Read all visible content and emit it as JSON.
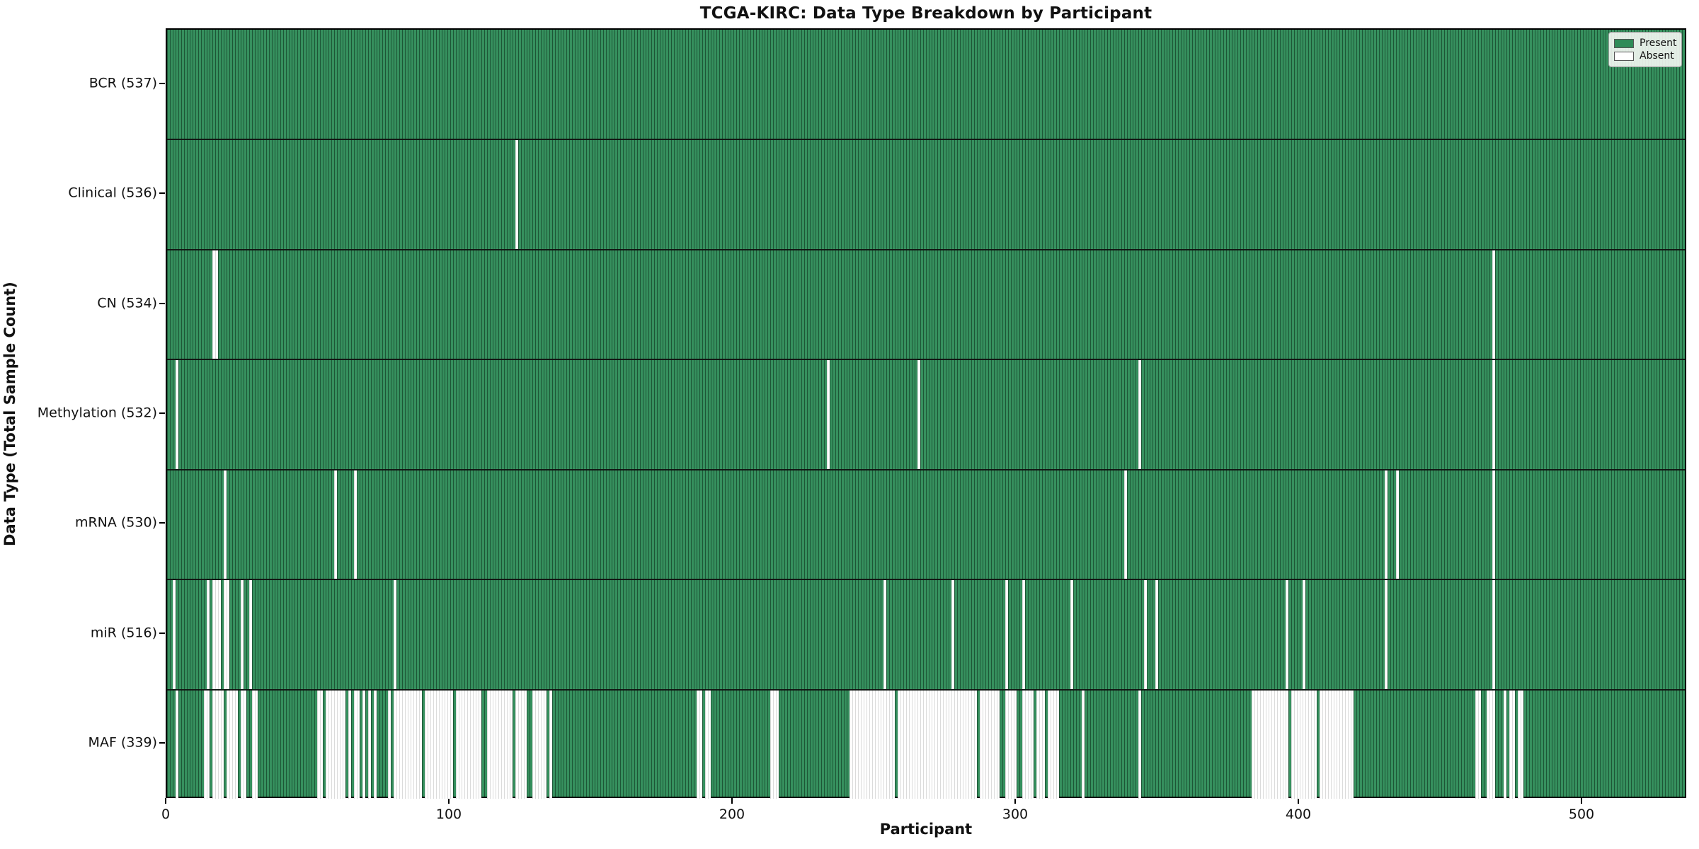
{
  "title": "TCGA-KIRC: Data Type Breakdown by Participant",
  "x_axis": {
    "label": "Participant",
    "ticks": [
      0,
      100,
      200,
      300,
      400,
      500
    ]
  },
  "y_axis": {
    "label": "Data Type (Total Sample Count)"
  },
  "legend": {
    "present_label": "Present",
    "absent_label": "Absent"
  },
  "colors": {
    "present": "#2e8b57",
    "present_edge": "#1e5c39",
    "absent": "#ffffff",
    "absent_edge": "#d9d9d9",
    "row_divider": "#141414",
    "plot_border": "#000000"
  },
  "chart_data": {
    "type": "heatmap",
    "title": "TCGA-KIRC: Data Type Breakdown by Participant",
    "xlabel": "Participant",
    "ylabel": "Data Type (Total Sample Count)",
    "legend_position": "upper right",
    "x_ticks": [
      0,
      100,
      200,
      300,
      400,
      500
    ],
    "n_participants": 537,
    "cell_states": {
      "present": "green",
      "absent": "white"
    },
    "rows": [
      {
        "data_type": "BCR",
        "label": "BCR (537)",
        "present_count": 537,
        "absent_participant_ranges": []
      },
      {
        "data_type": "Clinical",
        "label": "Clinical (536)",
        "present_count": 536,
        "absent_participant_ranges": [
          [
            123,
            123
          ]
        ]
      },
      {
        "data_type": "CN",
        "label": "CN (534)",
        "present_count": 534,
        "absent_participant_ranges": [
          [
            16,
            17
          ],
          [
            468,
            468
          ]
        ]
      },
      {
        "data_type": "Methylation",
        "label": "Methylation (532)",
        "present_count": 532,
        "absent_participant_ranges": [
          [
            3,
            3
          ],
          [
            233,
            233
          ],
          [
            265,
            265
          ],
          [
            343,
            343
          ],
          [
            468,
            468
          ]
        ]
      },
      {
        "data_type": "mRNA",
        "label": "mRNA (530)",
        "present_count": 530,
        "absent_participant_ranges": [
          [
            20,
            20
          ],
          [
            59,
            59
          ],
          [
            66,
            66
          ],
          [
            338,
            338
          ],
          [
            430,
            430
          ],
          [
            434,
            434
          ],
          [
            468,
            468
          ]
        ]
      },
      {
        "data_type": "miR",
        "label": "miR (516)",
        "present_count": 516,
        "absent_participant_ranges": [
          [
            2,
            2
          ],
          [
            14,
            14
          ],
          [
            16,
            18
          ],
          [
            20,
            21
          ],
          [
            26,
            26
          ],
          [
            29,
            29
          ],
          [
            80,
            80
          ],
          [
            253,
            253
          ],
          [
            277,
            277
          ],
          [
            296,
            296
          ],
          [
            302,
            302
          ],
          [
            319,
            319
          ],
          [
            345,
            345
          ],
          [
            349,
            349
          ],
          [
            395,
            395
          ],
          [
            401,
            401
          ],
          [
            430,
            430
          ],
          [
            468,
            468
          ]
        ]
      },
      {
        "data_type": "MAF",
        "label": "MAF (339)",
        "present_count": 339,
        "absent_participant_ranges": [
          [
            3,
            3
          ],
          [
            13,
            14
          ],
          [
            16,
            17
          ],
          [
            18,
            19
          ],
          [
            21,
            22
          ],
          [
            23,
            24
          ],
          [
            26,
            27
          ],
          [
            30,
            31
          ],
          [
            53,
            54
          ],
          [
            56,
            62
          ],
          [
            64,
            64
          ],
          [
            66,
            67
          ],
          [
            69,
            69
          ],
          [
            71,
            71
          ],
          [
            73,
            73
          ],
          [
            78,
            78
          ],
          [
            80,
            89
          ],
          [
            91,
            100
          ],
          [
            102,
            110
          ],
          [
            113,
            121
          ],
          [
            123,
            126
          ],
          [
            129,
            133
          ],
          [
            135,
            135
          ],
          [
            187,
            188
          ],
          [
            190,
            191
          ],
          [
            213,
            215
          ],
          [
            241,
            256
          ],
          [
            258,
            285
          ],
          [
            287,
            293
          ],
          [
            296,
            299
          ],
          [
            302,
            305
          ],
          [
            307,
            309
          ],
          [
            311,
            314
          ],
          [
            323,
            323
          ],
          [
            343,
            343
          ],
          [
            383,
            395
          ],
          [
            397,
            405
          ],
          [
            407,
            418
          ],
          [
            462,
            463
          ],
          [
            466,
            468
          ],
          [
            472,
            472
          ],
          [
            474,
            475
          ],
          [
            477,
            478
          ]
        ]
      }
    ]
  }
}
